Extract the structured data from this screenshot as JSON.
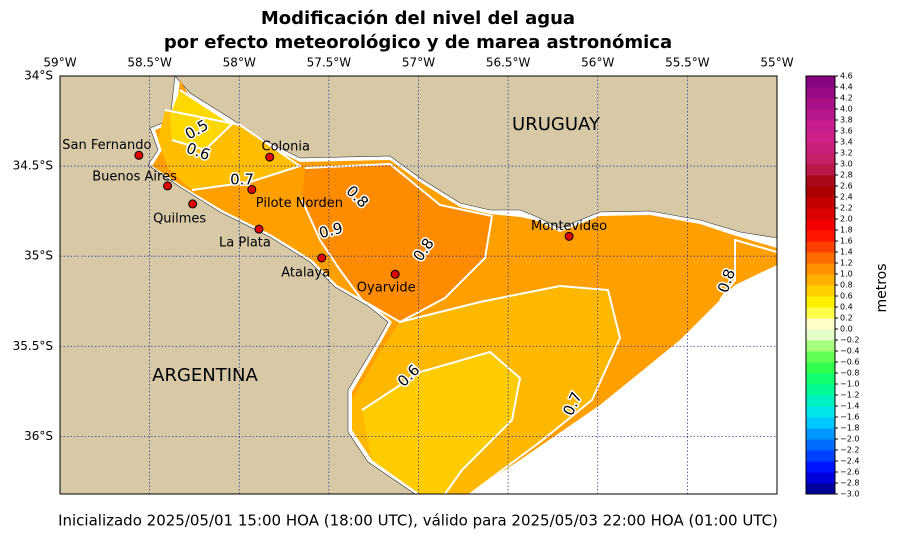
{
  "header": {
    "title_line1": "Modificación del nivel del agua",
    "title_line2": "por efecto meteorológico y de marea astronómica"
  },
  "map": {
    "lon_lim": [
      -59,
      -55
    ],
    "lat_lim": [
      -36.32,
      -34
    ],
    "lon_ticks": [
      {
        "value": -59,
        "label": "59°W"
      },
      {
        "value": -58.5,
        "label": "58.5°W"
      },
      {
        "value": -58,
        "label": "58°W"
      },
      {
        "value": -57.5,
        "label": "57.5°W"
      },
      {
        "value": -57,
        "label": "57°W"
      },
      {
        "value": -56.5,
        "label": "56.5°W"
      },
      {
        "value": -56,
        "label": "56°W"
      },
      {
        "value": -55.5,
        "label": "55.5°W"
      },
      {
        "value": -55,
        "label": "55°W"
      }
    ],
    "lat_ticks": [
      {
        "value": -34,
        "label": "34°S"
      },
      {
        "value": -34.5,
        "label": "34.5°S"
      },
      {
        "value": -35,
        "label": "35°S"
      },
      {
        "value": -35.5,
        "label": "35.5°S"
      },
      {
        "value": -36,
        "label": "36°S"
      }
    ],
    "countries": [
      "URUGUAY",
      "ARGENTINA"
    ],
    "cities": [
      {
        "name": "San Fernando",
        "lon": -58.56,
        "lat": -34.44
      },
      {
        "name": "Buenos Aires",
        "lon": -58.4,
        "lat": -34.61
      },
      {
        "name": "Pilote Norden",
        "lon": -57.93,
        "lat": -34.63
      },
      {
        "name": "Colonia",
        "lon": -57.83,
        "lat": -34.45
      },
      {
        "name": "Quilmes",
        "lon": -58.26,
        "lat": -34.71
      },
      {
        "name": "La Plata",
        "lon": -57.89,
        "lat": -34.85
      },
      {
        "name": "Atalaya",
        "lon": -57.54,
        "lat": -35.01
      },
      {
        "name": "Oyarvide",
        "lon": -57.13,
        "lat": -35.1
      },
      {
        "name": "Montevideo",
        "lon": -56.16,
        "lat": -34.89
      }
    ],
    "contour_labels": [
      0.5,
      0.6,
      0.7,
      0.8,
      0.9,
      0.8,
      0.6,
      0.7,
      0.8
    ]
  },
  "colorbar": {
    "label": "metros",
    "lim": [
      -3.0,
      4.6
    ],
    "colormap": [
      {
        "value": -3.0,
        "color": "#00007a"
      },
      {
        "value": -2.6,
        "color": "#0000ff"
      },
      {
        "value": -2.0,
        "color": "#0080ff"
      },
      {
        "value": -1.6,
        "color": "#00e0ff"
      },
      {
        "value": -1.0,
        "color": "#00ff80"
      },
      {
        "value": -0.6,
        "color": "#40ff40"
      },
      {
        "value": -0.2,
        "color": "#c8ff90"
      },
      {
        "value": 0.0,
        "color": "#ffffff"
      },
      {
        "value": 0.2,
        "color": "#ffff90"
      },
      {
        "value": 0.4,
        "color": "#ffff00"
      },
      {
        "value": 0.8,
        "color": "#ffc000"
      },
      {
        "value": 1.2,
        "color": "#ff8000"
      },
      {
        "value": 1.8,
        "color": "#ff0000"
      },
      {
        "value": 2.6,
        "color": "#a00000"
      },
      {
        "value": 3.0,
        "color": "#c02060"
      },
      {
        "value": 3.6,
        "color": "#d02090"
      },
      {
        "value": 4.6,
        "color": "#800080"
      }
    ],
    "ticks": [
      {
        "value": -3.0,
        "label": "−3.0"
      },
      {
        "value": -2.8,
        "label": "−2.8"
      },
      {
        "value": -2.6,
        "label": "−2.6"
      },
      {
        "value": -2.4,
        "label": "−2.4"
      },
      {
        "value": -2.2,
        "label": "−2.2"
      },
      {
        "value": -2.0,
        "label": "−2.0"
      },
      {
        "value": -1.8,
        "label": "−1.8"
      },
      {
        "value": -1.6,
        "label": "−1.6"
      },
      {
        "value": -1.4,
        "label": "−1.4"
      },
      {
        "value": -1.2,
        "label": "−1.2"
      },
      {
        "value": -1.0,
        "label": "−1.0"
      },
      {
        "value": -0.8,
        "label": "−0.8"
      },
      {
        "value": -0.6,
        "label": "−0.6"
      },
      {
        "value": -0.4,
        "label": "−0.4"
      },
      {
        "value": -0.2,
        "label": "−0.2"
      },
      {
        "value": 0.0,
        "label": "0.0"
      },
      {
        "value": 0.2,
        "label": "0.2"
      },
      {
        "value": 0.4,
        "label": "0.4"
      },
      {
        "value": 0.6,
        "label": "0.6"
      },
      {
        "value": 0.8,
        "label": "0.8"
      },
      {
        "value": 1.0,
        "label": "1.0"
      },
      {
        "value": 1.2,
        "label": "1.2"
      },
      {
        "value": 1.4,
        "label": "1.4"
      },
      {
        "value": 1.6,
        "label": "1.6"
      },
      {
        "value": 1.8,
        "label": "1.8"
      },
      {
        "value": 2.0,
        "label": "2.0"
      },
      {
        "value": 2.2,
        "label": "2.2"
      },
      {
        "value": 2.4,
        "label": "2.4"
      },
      {
        "value": 2.6,
        "label": "2.6"
      },
      {
        "value": 2.8,
        "label": "2.8"
      },
      {
        "value": 3.0,
        "label": "3.0"
      },
      {
        "value": 3.2,
        "label": "3.2"
      },
      {
        "value": 3.4,
        "label": "3.4"
      },
      {
        "value": 3.6,
        "label": "3.6"
      },
      {
        "value": 3.8,
        "label": "3.8"
      },
      {
        "value": 4.0,
        "label": "4.0"
      },
      {
        "value": 4.2,
        "label": "4.2"
      },
      {
        "value": 4.4,
        "label": "4.4"
      },
      {
        "value": 4.6,
        "label": "4.6"
      }
    ]
  },
  "footer": {
    "text": "Inicializado 2025/05/01 15:00 HOA (18:00 UTC), válido para 2025/05/03 22:00 HOA (01:00 UTC)"
  }
}
